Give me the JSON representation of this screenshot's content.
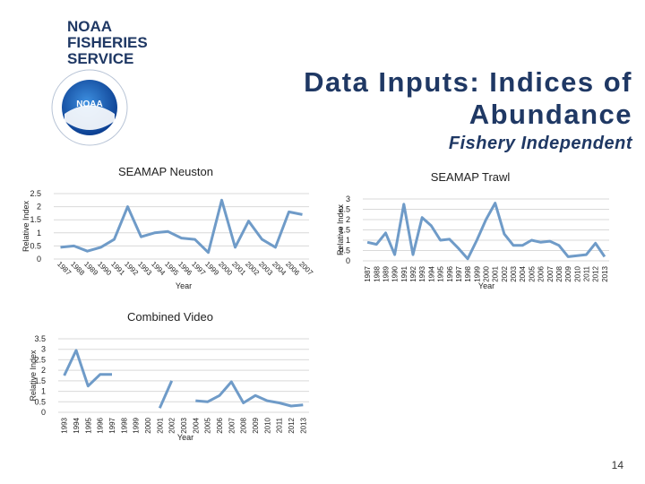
{
  "header": {
    "logo_lines": [
      "NOAA",
      "FISHERIES",
      "SERVICE"
    ],
    "emblem_text": "NOAA",
    "title": "Data Inputs: Indices of Abundance",
    "subtitle": "Fishery Independent"
  },
  "page_number": "14",
  "chart_data": [
    {
      "type": "line",
      "title": "SEAMAP Neuston",
      "x_label": "Year",
      "y_label": "Relative Index",
      "color": "#6f9bc8",
      "grid": true,
      "categories": [
        "1987",
        "1988",
        "1989",
        "1990",
        "1991",
        "1992",
        "1993",
        "1994",
        "1995",
        "1996",
        "1997",
        "1999",
        "2000",
        "2001",
        "2002",
        "2003",
        "2004",
        "2006",
        "2007"
      ],
      "values": [
        0.45,
        0.5,
        0.3,
        0.45,
        0.75,
        2.0,
        0.85,
        1.0,
        1.05,
        0.8,
        0.75,
        0.25,
        2.25,
        0.45,
        1.45,
        0.75,
        0.45,
        1.8,
        1.7
      ],
      "ylim": [
        0,
        2.5
      ],
      "yticks": [
        0,
        0.5,
        1,
        1.5,
        2,
        2.5
      ]
    },
    {
      "type": "line",
      "title": "SEAMAP Trawl",
      "x_label": "Year",
      "y_label": "Relative Index",
      "color": "#6f9bc8",
      "grid": true,
      "categories": [
        "1987",
        "1988",
        "1989",
        "1990",
        "1991",
        "1992",
        "1993",
        "1994",
        "1995",
        "1996",
        "1997",
        "1998",
        "1999",
        "2000",
        "2001",
        "2002",
        "2003",
        "2004",
        "2005",
        "2006",
        "2007",
        "2008",
        "2009",
        "2010",
        "2011",
        "2012",
        "2013"
      ],
      "values": [
        0.9,
        0.8,
        1.35,
        0.3,
        2.75,
        0.3,
        2.1,
        1.7,
        1.0,
        1.05,
        0.6,
        0.1,
        1.0,
        2.0,
        2.8,
        1.3,
        0.75,
        0.75,
        1.0,
        0.9,
        0.95,
        0.75,
        0.2,
        0.25,
        0.3,
        0.85,
        0.2
      ],
      "ylim": [
        0,
        3
      ],
      "yticks": [
        0,
        0.5,
        1,
        1.5,
        2,
        2.5,
        3
      ]
    },
    {
      "type": "line",
      "title": "Combined Video",
      "x_label": "Year",
      "y_label": "Relative Index",
      "color": "#6f9bc8",
      "grid": true,
      "categories": [
        "1993",
        "1994",
        "1995",
        "1996",
        "1997",
        "1998",
        "1999",
        "2000",
        "2001",
        "2002",
        "2003",
        "2004",
        "2005",
        "2006",
        "2007",
        "2008",
        "2009",
        "2010",
        "2011",
        "2012",
        "2013"
      ],
      "values": [
        1.75,
        2.95,
        1.25,
        1.8,
        1.8,
        null,
        null,
        null,
        0.2,
        1.5,
        null,
        0.55,
        0.5,
        0.8,
        1.45,
        0.45,
        0.8,
        0.55,
        0.45,
        0.3,
        0.35
      ],
      "ylim": [
        0,
        3.5
      ],
      "yticks": [
        0,
        0.5,
        1,
        1.5,
        2,
        2.5,
        3,
        3.5
      ]
    }
  ]
}
